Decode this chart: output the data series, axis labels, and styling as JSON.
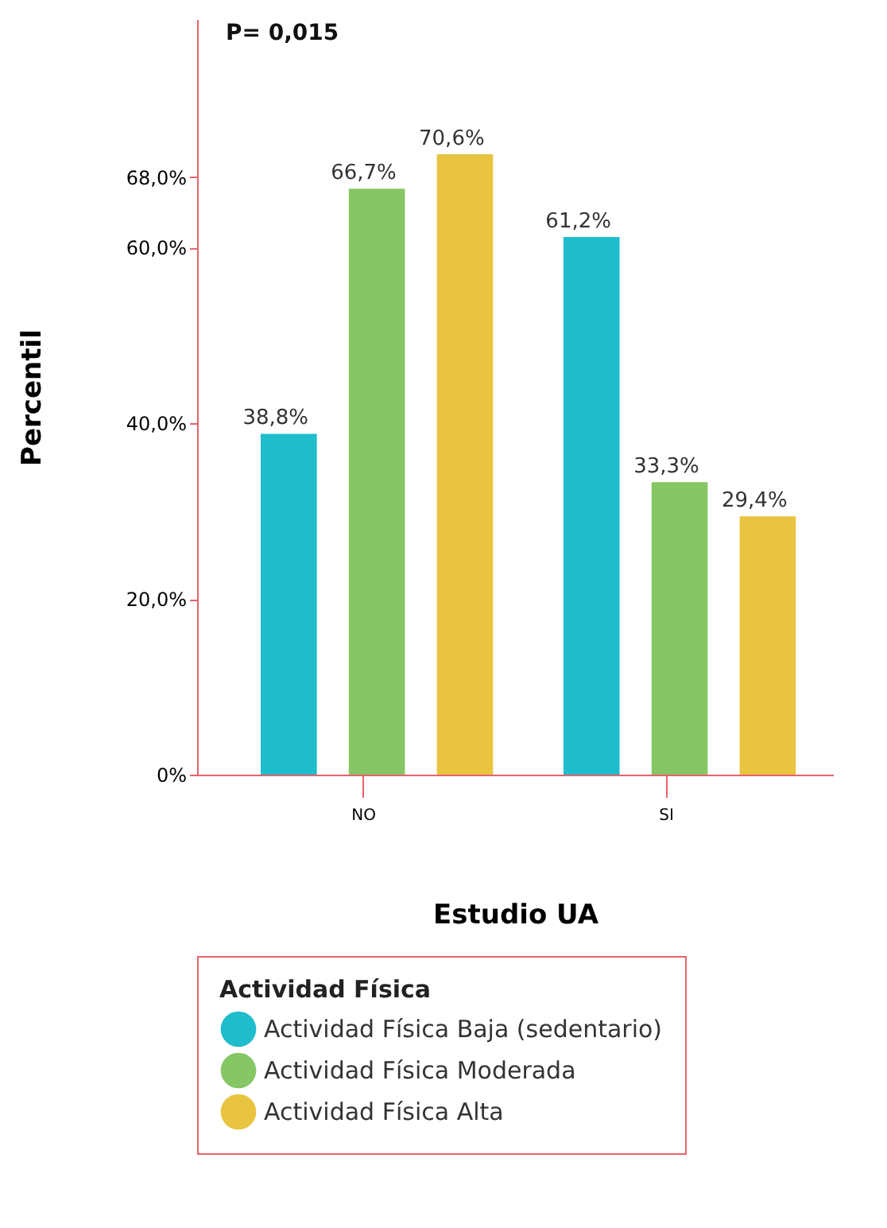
{
  "chart_data": {
    "type": "bar",
    "xlabel": "Estudio UA",
    "ylabel": "Percentil",
    "legend_title": "Actividad Física",
    "categories": [
      "NO",
      "SI"
    ],
    "series": [
      {
        "name": "Actividad Física Baja (sedentario)",
        "color": "#1fbccc",
        "values": [
          38.8,
          61.2
        ],
        "value_labels": [
          "38,8%",
          "61,2%"
        ]
      },
      {
        "name": "Actividad Física Moderada",
        "color": "#86c665",
        "values": [
          66.7,
          33.3
        ],
        "value_labels": [
          "66,7%",
          "33,3%"
        ]
      },
      {
        "name": "Actividad Física Alta",
        "color": "#e8c440",
        "values": [
          70.6,
          29.4
        ],
        "value_labels": [
          "70,6%",
          "29,4%"
        ]
      }
    ],
    "ylim": [
      0,
      86
    ],
    "yticks": [
      {
        "value": 0,
        "label": "0%"
      },
      {
        "value": 20,
        "label": "20,0%"
      },
      {
        "value": 40,
        "label": "40,0%"
      },
      {
        "value": 60,
        "label": "60,0%"
      },
      {
        "value": 68,
        "label": "68,0%"
      }
    ],
    "annotations": [
      "P= 0,015"
    ],
    "grid": false,
    "legend": "bottom"
  }
}
